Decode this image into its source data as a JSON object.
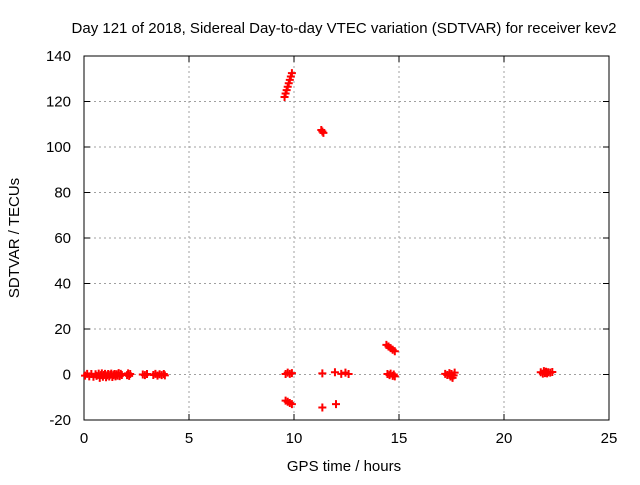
{
  "chart_data": {
    "type": "scatter",
    "title": "Day 121 of 2018, Sidereal Day-to-day VTEC variation (SDTVAR) for receiver kev2",
    "xlabel": "GPS time / hours",
    "ylabel": "SDTVAR / TECUs",
    "xlim": [
      0,
      25
    ],
    "ylim": [
      -20,
      140
    ],
    "xticks": [
      0,
      5,
      10,
      15,
      20,
      25
    ],
    "yticks": [
      -20,
      0,
      20,
      40,
      60,
      80,
      100,
      120,
      140
    ],
    "xtick_labels": [
      "0",
      "5",
      "10",
      "15",
      "20",
      "25"
    ],
    "ytick_labels": [
      "-20",
      "0",
      "20",
      "40",
      "60",
      "80",
      "100",
      "120",
      "140"
    ],
    "grid": true,
    "marker": "plus",
    "color": "#ff0000",
    "series": [
      {
        "name": "SDTVAR",
        "points": [
          [
            0.05,
            -0.5
          ],
          [
            0.15,
            0.3
          ],
          [
            0.25,
            -0.8
          ],
          [
            0.35,
            0.2
          ],
          [
            0.45,
            -1.0
          ],
          [
            0.55,
            0.1
          ],
          [
            0.6,
            -0.6
          ],
          [
            0.7,
            0.4
          ],
          [
            0.75,
            -1.5
          ],
          [
            0.8,
            -0.3
          ],
          [
            0.85,
            0.5
          ],
          [
            0.9,
            -1.0
          ],
          [
            0.95,
            -0.2
          ],
          [
            1.0,
            0.3
          ],
          [
            1.05,
            -1.2
          ],
          [
            1.1,
            -0.4
          ],
          [
            1.15,
            0.2
          ],
          [
            1.2,
            -0.9
          ],
          [
            1.25,
            -0.1
          ],
          [
            1.3,
            0.4
          ],
          [
            1.35,
            -1.1
          ],
          [
            1.4,
            -0.3
          ],
          [
            1.45,
            0.2
          ],
          [
            1.5,
            -0.8
          ],
          [
            1.55,
            0.1
          ],
          [
            1.6,
            -0.5
          ],
          [
            1.65,
            0.6
          ],
          [
            1.7,
            -0.7
          ],
          [
            1.75,
            0.3
          ],
          [
            1.8,
            -0.2
          ],
          [
            2.05,
            -0.3
          ],
          [
            2.1,
            0.5
          ],
          [
            2.15,
            -0.6
          ],
          [
            2.2,
            0.2
          ],
          [
            2.8,
            0.0
          ],
          [
            2.9,
            -0.3
          ],
          [
            3.0,
            0.2
          ],
          [
            3.3,
            -0.2
          ],
          [
            3.4,
            0.3
          ],
          [
            3.5,
            -0.5
          ],
          [
            3.6,
            0.1
          ],
          [
            3.7,
            -0.3
          ],
          [
            3.8,
            0.2
          ],
          [
            3.85,
            -0.4
          ],
          [
            9.55,
            122.0
          ],
          [
            9.6,
            123.5
          ],
          [
            9.65,
            125.0
          ],
          [
            9.7,
            126.5
          ],
          [
            9.75,
            128.0
          ],
          [
            9.8,
            129.5
          ],
          [
            9.85,
            131.0
          ],
          [
            9.9,
            132.5
          ],
          [
            9.6,
            0.2
          ],
          [
            9.7,
            0.8
          ],
          [
            9.8,
            0.3
          ],
          [
            9.9,
            0.6
          ],
          [
            9.6,
            -11.5
          ],
          [
            9.7,
            -12.0
          ],
          [
            9.8,
            -12.5
          ],
          [
            9.9,
            -13.0
          ],
          [
            11.3,
            107.5
          ],
          [
            11.35,
            106.8
          ],
          [
            11.4,
            106.2
          ],
          [
            11.35,
            0.5
          ],
          [
            11.35,
            -14.5
          ],
          [
            11.95,
            1.0
          ],
          [
            12.25,
            0.3
          ],
          [
            12.45,
            0.8
          ],
          [
            12.6,
            0.2
          ],
          [
            12.0,
            -13.0
          ],
          [
            14.4,
            13.0
          ],
          [
            14.5,
            12.3
          ],
          [
            14.6,
            11.6
          ],
          [
            14.7,
            10.9
          ],
          [
            14.8,
            10.2
          ],
          [
            14.45,
            0.2
          ],
          [
            14.55,
            -0.3
          ],
          [
            14.6,
            0.4
          ],
          [
            14.7,
            -0.6
          ],
          [
            14.75,
            0.0
          ],
          [
            14.8,
            -0.8
          ],
          [
            17.2,
            0.3
          ],
          [
            17.3,
            -0.2
          ],
          [
            17.4,
            0.6
          ],
          [
            17.45,
            -0.9
          ],
          [
            17.5,
            0.2
          ],
          [
            17.55,
            -1.5
          ],
          [
            17.6,
            -0.4
          ],
          [
            17.65,
            0.8
          ],
          [
            21.75,
            1.0
          ],
          [
            21.85,
            0.4
          ],
          [
            21.9,
            1.5
          ],
          [
            21.95,
            0.6
          ],
          [
            22.0,
            1.2
          ],
          [
            22.05,
            0.5
          ],
          [
            22.1,
            1.0
          ],
          [
            22.2,
            0.8
          ],
          [
            22.3,
            1.1
          ]
        ]
      }
    ]
  }
}
